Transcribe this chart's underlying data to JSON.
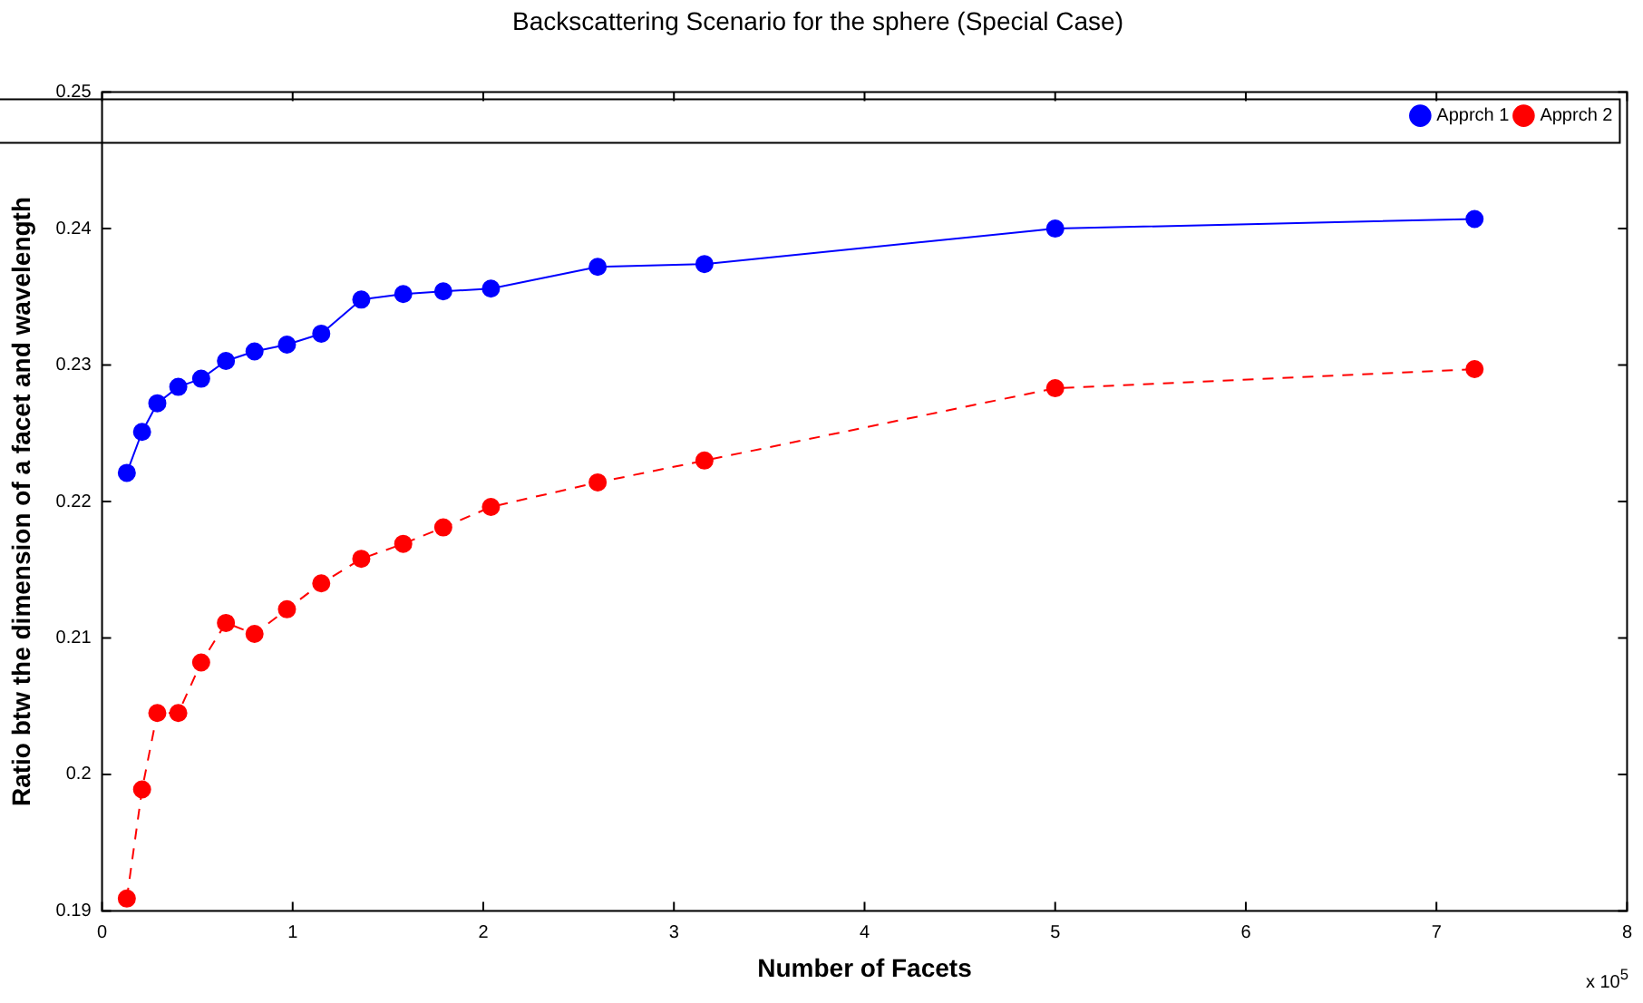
{
  "chart_data": {
    "type": "line",
    "title": "Backscattering Scenario for the sphere (Special Case)",
    "xlabel": "Number of Facets",
    "ylabel": "Ratio btw the dimension of a facet and wavelength",
    "x": [
      0.13,
      0.21,
      0.29,
      0.4,
      0.52,
      0.65,
      0.8,
      0.97,
      1.15,
      1.36,
      1.58,
      1.79,
      2.04,
      2.6,
      3.16,
      5.0,
      7.2
    ],
    "series": [
      {
        "name": "Apprch 1",
        "color": "#0000ff",
        "line_style": "solid",
        "values": [
          0.2221,
          0.2251,
          0.2272,
          0.2284,
          0.229,
          0.2303,
          0.231,
          0.2315,
          0.2323,
          0.2348,
          0.2352,
          0.2354,
          0.2356,
          0.2372,
          0.2374,
          0.24,
          0.2407
        ]
      },
      {
        "name": "Apprch 2",
        "color": "#ff0000",
        "line_style": "dashed",
        "values": [
          0.1909,
          0.1989,
          0.2045,
          0.2045,
          0.2082,
          0.2111,
          0.2103,
          0.2121,
          0.214,
          0.2158,
          0.2169,
          0.2181,
          0.2196,
          0.2214,
          0.223,
          0.2283,
          0.2297
        ]
      }
    ],
    "xlim": [
      0,
      8
    ],
    "xticks": [
      0,
      1,
      2,
      3,
      4,
      5,
      6,
      7,
      8
    ],
    "ylim": [
      0.19,
      0.25
    ],
    "yticks": [
      0.19,
      0.2,
      0.21,
      0.22,
      0.23,
      0.24,
      0.25
    ],
    "annotations": [
      "x 10$^{5}$"
    ],
    "grid": false,
    "legend": "top right",
    "marker": "circle"
  }
}
